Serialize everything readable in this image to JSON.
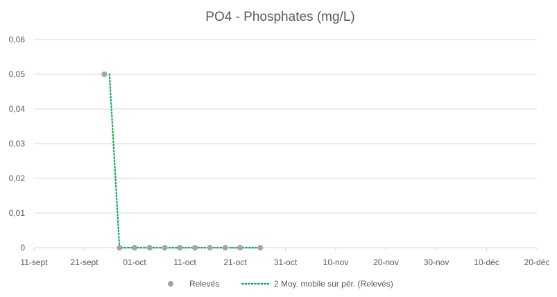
{
  "chart_data": {
    "type": "scatter",
    "title": "PO4 - Phosphates (mg/L)",
    "xlabel": "",
    "ylabel": "",
    "x_tick_labels": [
      "11-sept",
      "21-sept",
      "01-oct",
      "11-oct",
      "21-oct",
      "31-oct",
      "10-nov",
      "20-nov",
      "30-nov",
      "10-déc",
      "20-déc"
    ],
    "y_tick_labels": [
      "0",
      "0,01",
      "0,02",
      "0,03",
      "0,04",
      "0,05",
      "0,06"
    ],
    "xlim": [
      "2023-09-11",
      "2023-12-20"
    ],
    "ylim": [
      0,
      0.06
    ],
    "grid": "horizontal",
    "legend_position": "bottom",
    "series": [
      {
        "name": "Relevés",
        "kind": "markers",
        "color": "#a5a5a5",
        "points": [
          {
            "x": "2023-09-25",
            "y": 0.05
          },
          {
            "x": "2023-09-28",
            "y": 0
          },
          {
            "x": "2023-10-01",
            "y": 0
          },
          {
            "x": "2023-10-04",
            "y": 0
          },
          {
            "x": "2023-10-07",
            "y": 0
          },
          {
            "x": "2023-10-10",
            "y": 0
          },
          {
            "x": "2023-10-13",
            "y": 0
          },
          {
            "x": "2023-10-16",
            "y": 0
          },
          {
            "x": "2023-10-19",
            "y": 0
          },
          {
            "x": "2023-10-22",
            "y": 0
          },
          {
            "x": "2023-10-26",
            "y": 0
          }
        ]
      },
      {
        "name": "2 Moy. mobile sur pér. (Relevés)",
        "kind": "dotted-line",
        "color": "#00b050",
        "points": [
          {
            "x": "2023-09-26",
            "y": 0.05
          },
          {
            "x": "2023-09-28",
            "y": 0
          },
          {
            "x": "2023-10-01",
            "y": 0
          },
          {
            "x": "2023-10-04",
            "y": 0
          },
          {
            "x": "2023-10-07",
            "y": 0
          },
          {
            "x": "2023-10-10",
            "y": 0
          },
          {
            "x": "2023-10-13",
            "y": 0
          },
          {
            "x": "2023-10-16",
            "y": 0
          },
          {
            "x": "2023-10-19",
            "y": 0
          },
          {
            "x": "2023-10-22",
            "y": 0
          },
          {
            "x": "2023-10-26",
            "y": 0
          }
        ]
      }
    ]
  }
}
